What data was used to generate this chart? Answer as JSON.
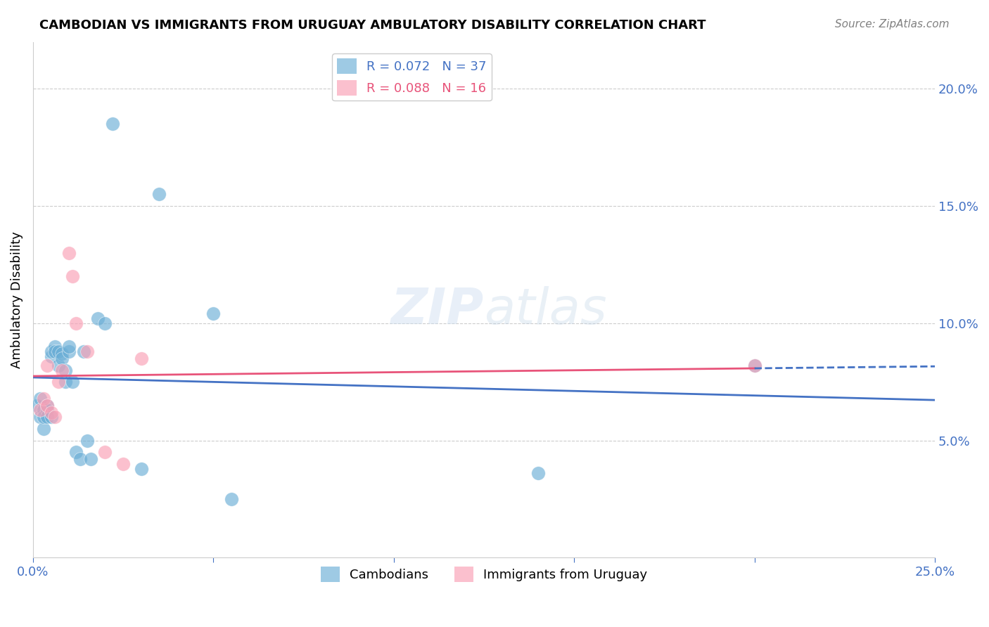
{
  "title": "CAMBODIAN VS IMMIGRANTS FROM URUGUAY AMBULATORY DISABILITY CORRELATION CHART",
  "source": "Source: ZipAtlas.com",
  "ylabel": "Ambulatory Disability",
  "xmin": 0.0,
  "xmax": 0.25,
  "ymin": 0.0,
  "ymax": 0.22,
  "yticks": [
    0.05,
    0.1,
    0.15,
    0.2
  ],
  "ytick_labels": [
    "5.0%",
    "10.0%",
    "15.0%",
    "20.0%"
  ],
  "xticks": [
    0.0,
    0.05,
    0.1,
    0.15,
    0.2,
    0.25
  ],
  "xtick_labels": [
    "0.0%",
    "",
    "",
    "",
    "",
    "25.0%"
  ],
  "cambodian_R": 0.072,
  "cambodian_N": 37,
  "uruguay_R": 0.088,
  "uruguay_N": 16,
  "cambodian_color": "#6baed6",
  "uruguay_color": "#fa9fb5",
  "trend_blue": "#4472c4",
  "trend_pink": "#e8547a",
  "cambodian_x": [
    0.001,
    0.002,
    0.002,
    0.003,
    0.003,
    0.003,
    0.004,
    0.004,
    0.004,
    0.005,
    0.005,
    0.005,
    0.006,
    0.006,
    0.007,
    0.007,
    0.008,
    0.008,
    0.009,
    0.009,
    0.01,
    0.01,
    0.011,
    0.012,
    0.013,
    0.014,
    0.015,
    0.016,
    0.018,
    0.02,
    0.022,
    0.03,
    0.035,
    0.05,
    0.055,
    0.14,
    0.2
  ],
  "cambodian_y": [
    0.065,
    0.06,
    0.068,
    0.063,
    0.055,
    0.06,
    0.065,
    0.063,
    0.06,
    0.086,
    0.088,
    0.06,
    0.09,
    0.088,
    0.088,
    0.082,
    0.087,
    0.085,
    0.08,
    0.075,
    0.088,
    0.09,
    0.075,
    0.045,
    0.042,
    0.088,
    0.05,
    0.042,
    0.102,
    0.1,
    0.185,
    0.038,
    0.155,
    0.104,
    0.025,
    0.036,
    0.082
  ],
  "uruguay_x": [
    0.002,
    0.003,
    0.004,
    0.004,
    0.005,
    0.006,
    0.007,
    0.008,
    0.01,
    0.011,
    0.012,
    0.015,
    0.02,
    0.025,
    0.03,
    0.2
  ],
  "uruguay_y": [
    0.063,
    0.068,
    0.065,
    0.082,
    0.062,
    0.06,
    0.075,
    0.08,
    0.13,
    0.12,
    0.1,
    0.088,
    0.045,
    0.04,
    0.085,
    0.082
  ]
}
